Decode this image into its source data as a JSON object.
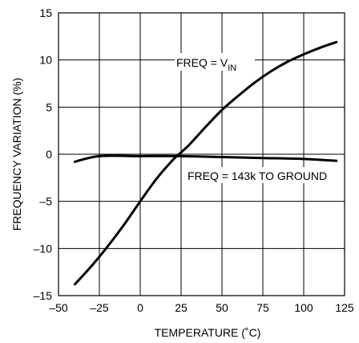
{
  "chart_data": {
    "type": "line",
    "xlabel": "TEMPERATURE (˚C)",
    "ylabel": "FREQUENCY VARIATION (%)",
    "xlim": [
      -50,
      125
    ],
    "ylim": [
      -15,
      15
    ],
    "xticks": [
      -50,
      -25,
      0,
      25,
      50,
      75,
      100,
      125
    ],
    "yticks": [
      -15,
      -10,
      -5,
      0,
      5,
      10,
      15
    ],
    "xtick_labels": [
      "–50",
      "–25",
      "0",
      "25",
      "50",
      "75",
      "100",
      "125"
    ],
    "ytick_labels": [
      "–15",
      "–10",
      "–5",
      "0",
      "5",
      "10",
      "15"
    ],
    "grid": true,
    "legend": "none",
    "series": [
      {
        "x": [
          -40,
          -30,
          -20,
          -10,
          0,
          10,
          20,
          25,
          30,
          40,
          50,
          60,
          70,
          80,
          90,
          100,
          110,
          120
        ],
        "y": [
          -13.8,
          -11.9,
          -9.8,
          -7.5,
          -5.0,
          -2.6,
          -0.6,
          0.2,
          1.0,
          2.9,
          4.7,
          6.2,
          7.6,
          8.8,
          9.8,
          10.6,
          11.3,
          11.9
        ]
      },
      {
        "x": [
          -40,
          -25,
          0,
          25,
          50,
          75,
          100,
          120
        ],
        "y": [
          -0.8,
          -0.2,
          -0.2,
          -0.2,
          -0.3,
          -0.4,
          -0.5,
          -0.7
        ]
      }
    ],
    "annotations": {
      "vin_main": "FREQ = V",
      "vin_sub": "IN",
      "ground": "FREQ = 143k TO GROUND"
    },
    "colors": {
      "line": "#000000",
      "grid": "#000000",
      "background": "#ffffff"
    }
  }
}
